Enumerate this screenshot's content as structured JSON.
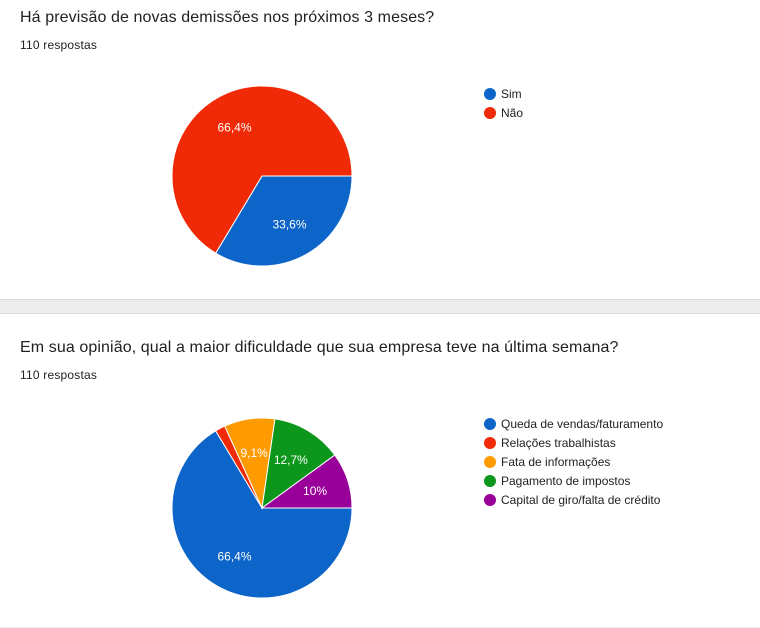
{
  "cards": [
    {
      "question": "Há previsão de novas demissões nos próximos 3 meses?",
      "responses": "110 respostas"
    },
    {
      "question": "Em sua opinião, qual a maior dificuldade que sua empresa teve na última semana?",
      "responses": "110 respostas"
    }
  ],
  "chart_data": [
    {
      "type": "pie",
      "title": "Há previsão de novas demissões nos próximos 3 meses?",
      "categories": [
        "Sim",
        "Não"
      ],
      "values": [
        33.6,
        66.4
      ],
      "labels": [
        "33,6%",
        "66,4%"
      ],
      "colors": [
        "#0d64c9",
        "#f02a06"
      ],
      "legend": "right"
    },
    {
      "type": "pie",
      "title": "Em sua opinião, qual a maior dificuldade que sua empresa teve na última semana?",
      "categories": [
        "Queda de vendas/faturamento",
        "Relações trabalhistas",
        "Fata de informações",
        "Pagamento de impostos",
        "Capital de giro/falta de crédito"
      ],
      "values": [
        66.4,
        1.8,
        9.1,
        12.7,
        10
      ],
      "labels": [
        "66,4%",
        "",
        "9,1%",
        "12,7%",
        "10%"
      ],
      "colors": [
        "#0d64c9",
        "#f02a06",
        "#ff9a01",
        "#0d961c",
        "#990099"
      ],
      "legend": "right"
    }
  ]
}
